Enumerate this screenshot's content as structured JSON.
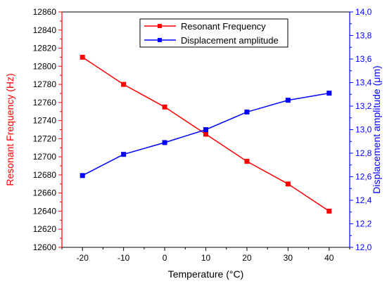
{
  "chart_data": {
    "type": "line",
    "x": [
      -20,
      -10,
      0,
      10,
      20,
      30,
      40
    ],
    "xlabel": "Temperature (°C)",
    "xlim": [
      -25,
      45
    ],
    "xticks": [
      -20,
      -10,
      0,
      10,
      20,
      30,
      40
    ],
    "ylabel_left": "Resonant Frequency (Hz)",
    "ylim_left": [
      12600,
      12860
    ],
    "yticks_left": [
      12600,
      12620,
      12640,
      12660,
      12680,
      12700,
      12720,
      12740,
      12760,
      12780,
      12800,
      12820,
      12840,
      12860
    ],
    "ylabel_right": "Displacement amplitude (μm)",
    "ylim_right": [
      12.0,
      14.0
    ],
    "yticks_right": [
      "12,0",
      "12,2",
      "12,4",
      "12,6",
      "12,8",
      "13,0",
      "13,2",
      "13,4",
      "13,6",
      "13,8",
      "14,0"
    ],
    "series": [
      {
        "name": "Resonant Frequency",
        "axis": "left",
        "color": "#ff0000",
        "values": [
          12810,
          12780,
          12755,
          12725,
          12695,
          12670,
          12640
        ]
      },
      {
        "name": "Displacement amplitude",
        "axis": "right",
        "color": "#0000ff",
        "values": [
          12.61,
          12.79,
          12.89,
          13.0,
          13.15,
          13.25,
          13.31
        ]
      }
    ],
    "legend_position": "top-center",
    "grid": false
  }
}
